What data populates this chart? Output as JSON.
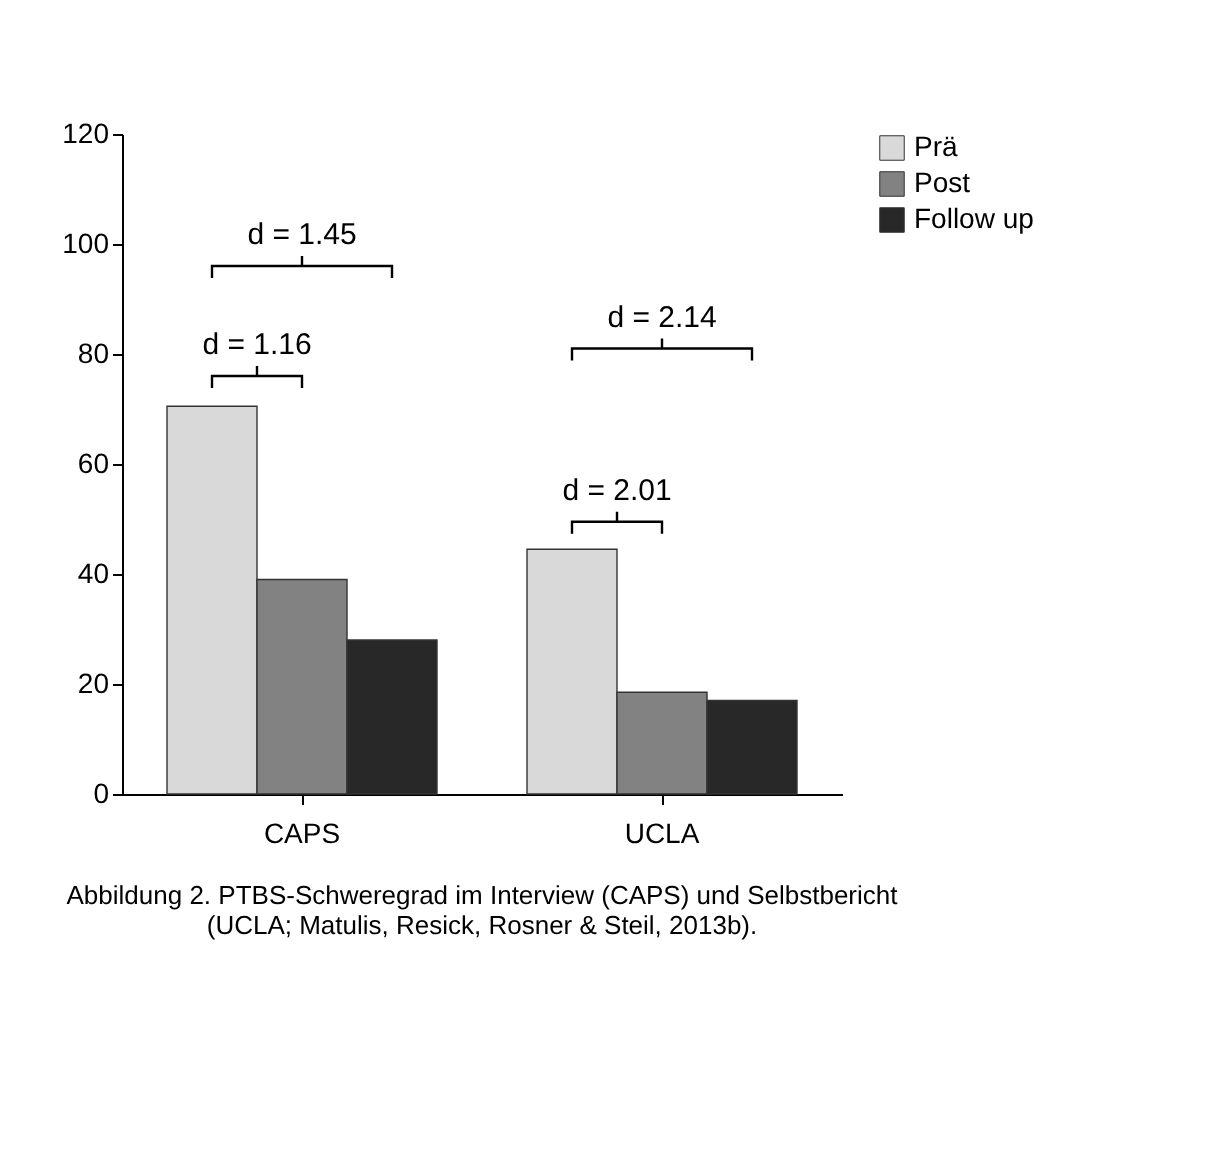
{
  "chart_data": {
    "type": "bar",
    "categories": [
      "CAPS",
      "UCLA"
    ],
    "series": [
      {
        "name": "Prä",
        "color": "#d9d9d9",
        "values": [
          70.5,
          44.5
        ]
      },
      {
        "name": "Post",
        "color": "#828282",
        "values": [
          39,
          18.5
        ]
      },
      {
        "name": "Follow up",
        "color": "#282828",
        "values": [
          28,
          17
        ]
      }
    ],
    "ylim": [
      0,
      120
    ],
    "yticks": [
      0,
      20,
      40,
      60,
      80,
      100,
      120
    ],
    "grid": false,
    "legend": "right",
    "annotations": [
      "d = 1.16",
      "d = 1.45",
      "d = 2.01",
      "d = 2.14",
      "Abbildung 2. PTBS-Schweregrad im Interview (CAPS) und Selbstbericht (UCLA; Matulis, Resick, Rosner & Steil, 2013b)."
    ]
  }
}
